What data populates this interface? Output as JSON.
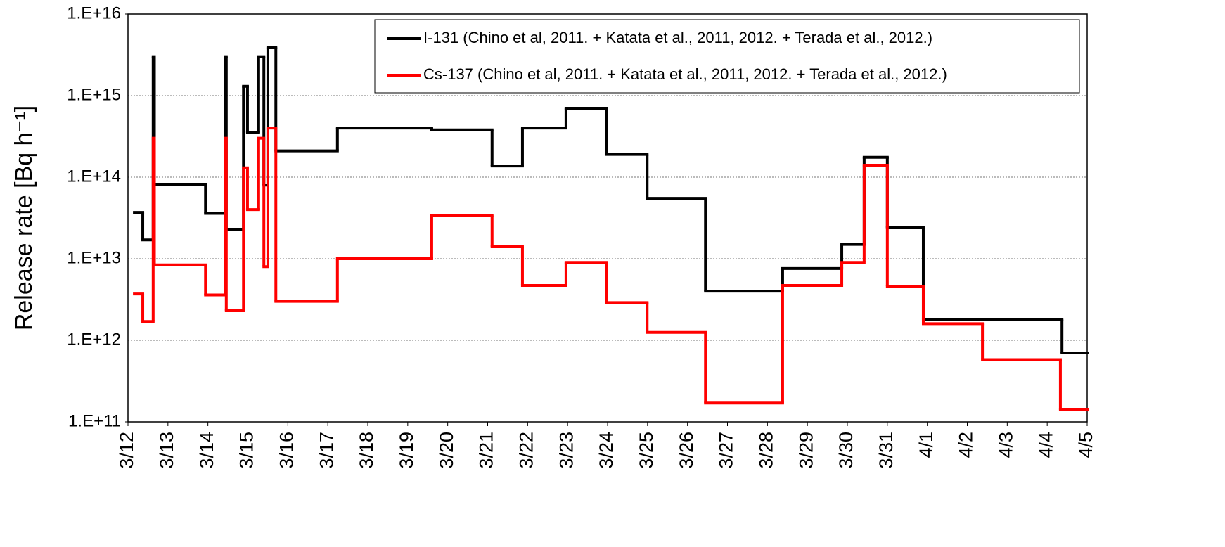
{
  "chart_data": {
    "type": "step",
    "ylabel": "Release rate [Bq h⁻¹]",
    "log_y": true,
    "grid": true,
    "legend": "upper right",
    "xlim": [
      0,
      24
    ],
    "xticks": [
      {
        "value": 0,
        "label": "3/12"
      },
      {
        "value": 1,
        "label": "3/13"
      },
      {
        "value": 2,
        "label": "3/14"
      },
      {
        "value": 3,
        "label": "3/15"
      },
      {
        "value": 4,
        "label": "3/16"
      },
      {
        "value": 5,
        "label": "3/17"
      },
      {
        "value": 6,
        "label": "3/18"
      },
      {
        "value": 7,
        "label": "3/19"
      },
      {
        "value": 8,
        "label": "3/20"
      },
      {
        "value": 9,
        "label": "3/21"
      },
      {
        "value": 10,
        "label": "3/22"
      },
      {
        "value": 11,
        "label": "3/23"
      },
      {
        "value": 12,
        "label": "3/24"
      },
      {
        "value": 13,
        "label": "3/25"
      },
      {
        "value": 14,
        "label": "3/26"
      },
      {
        "value": 15,
        "label": "3/27"
      },
      {
        "value": 16,
        "label": "3/28"
      },
      {
        "value": 17,
        "label": "3/29"
      },
      {
        "value": 18,
        "label": "3/30"
      },
      {
        "value": 19,
        "label": "3/31"
      },
      {
        "value": 20,
        "label": "4/1"
      },
      {
        "value": 21,
        "label": "4/2"
      },
      {
        "value": 22,
        "label": "4/3"
      },
      {
        "value": 23,
        "label": "4/4"
      },
      {
        "value": 24,
        "label": "4/5"
      }
    ],
    "ylim": [
      100000000000.0,
      1e+16
    ],
    "yticks": [
      {
        "value": 100000000000.0,
        "label": "1.E+11"
      },
      {
        "value": 1000000000000.0,
        "label": "1.E+12"
      },
      {
        "value": 10000000000000.0,
        "label": "1.E+13"
      },
      {
        "value": 100000000000000.0,
        "label": "1.E+14"
      },
      {
        "value": 1000000000000000.0,
        "label": "1.E+15"
      },
      {
        "value": 1e+16,
        "label": "1.E+16"
      }
    ],
    "series": [
      {
        "name": "I-131 (Chino et al, 2011. + Katata et al., 2011, 2012. + Terada et al., 2012.)",
        "color": "#000000",
        "x": [
          0.16,
          0.37,
          0.63,
          0.66,
          1.94,
          2.43,
          2.46,
          2.89,
          2.99,
          3.27,
          3.4,
          3.5,
          3.7,
          5.24,
          7.6,
          9.11,
          9.87,
          10.96,
          11.98,
          12.99,
          14.45,
          16.38,
          17.86,
          18.42,
          19.0,
          19.9,
          23.37,
          24
        ],
        "values": [
          37000000000000.0,
          17000000000000.0,
          3000000000000000.0,
          82000000000000.0,
          36000000000000.0,
          3000000000000000.0,
          23000000000000.0,
          1300000000000000.0,
          350000000000000.0,
          3000000000000000.0,
          80000000000000.0,
          3900000000000000.0,
          210000000000000.0,
          400000000000000.0,
          380000000000000.0,
          137000000000000.0,
          400000000000000.0,
          700000000000000.0,
          190000000000000.0,
          55000000000000.0,
          4000000000000.0,
          7600000000000.0,
          15000000000000.0,
          175000000000000.0,
          24000000000000.0,
          1800000000000.0,
          700000000000.0,
          700000000000.0
        ]
      },
      {
        "name": "Cs-137 (Chino et al, 2011. + Katata et al., 2011, 2012. + Terada et al., 2012.)",
        "color": "#ff0000",
        "x": [
          0.16,
          0.37,
          0.63,
          0.66,
          1.94,
          2.43,
          2.46,
          2.89,
          2.99,
          3.27,
          3.4,
          3.5,
          3.7,
          5.24,
          7.6,
          9.11,
          9.87,
          10.96,
          11.98,
          12.99,
          14.45,
          16.38,
          17.86,
          18.42,
          19.0,
          19.9,
          21.38,
          23.33,
          24
        ],
        "values": [
          3700000000000.0,
          1700000000000.0,
          300000000000000.0,
          8400000000000.0,
          3600000000000.0,
          300000000000000.0,
          2300000000000.0,
          130000000000000.0,
          40000000000000.0,
          300000000000000.0,
          8000000000000.0,
          400000000000000.0,
          3000000000000.0,
          10000000000000.0,
          34000000000000.0,
          14000000000000.0,
          4700000000000.0,
          9000000000000.0,
          2900000000000.0,
          1250000000000.0,
          170000000000.0,
          4700000000000.0,
          9000000000000.0,
          140000000000000.0,
          4600000000000.0,
          1600000000000.0,
          580000000000.0,
          140000000000.0,
          140000000000.0
        ]
      }
    ]
  }
}
